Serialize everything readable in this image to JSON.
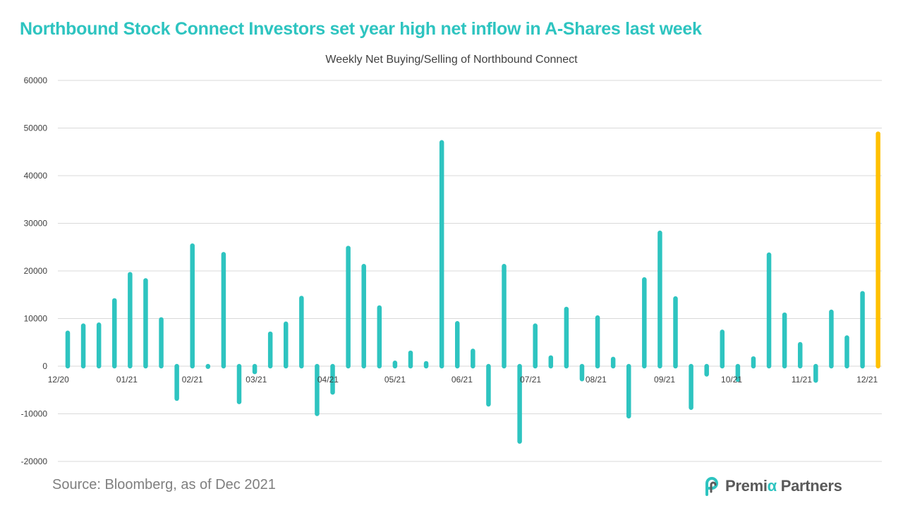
{
  "headline": "Northbound Stock Connect Investors set year high net inflow in A-Shares last week",
  "source": "Source: Bloomberg, as of Dec 2021",
  "logo": {
    "part1": "Premi",
    "accent": "α",
    "part2": " Partners"
  },
  "colors": {
    "bar": "#2ec4c0",
    "highlight": "#ffc000",
    "headline": "#2ec4c0",
    "grid": "#d9d9d9"
  },
  "chart_data": {
    "type": "bar",
    "title": "Weekly Net Buying/Selling of Northbound Connect",
    "xlabel": "",
    "ylabel": "",
    "ylim": [
      -20000,
      60000
    ],
    "yticks": [
      60000,
      50000,
      40000,
      30000,
      20000,
      10000,
      0,
      -10000,
      -20000
    ],
    "grid": true,
    "legend": "none",
    "x_tick_labels": [
      {
        "label": "12/20",
        "index": -0.6
      },
      {
        "label": "01/21",
        "index": 3.8
      },
      {
        "label": "02/21",
        "index": 8.0
      },
      {
        "label": "03/21",
        "index": 12.1
      },
      {
        "label": "04/21",
        "index": 16.7
      },
      {
        "label": "05/21",
        "index": 21.0
      },
      {
        "label": "06/21",
        "index": 25.3
      },
      {
        "label": "07/21",
        "index": 29.7
      },
      {
        "label": "08/21",
        "index": 33.9
      },
      {
        "label": "09/21",
        "index": 38.3
      },
      {
        "label": "10/21",
        "index": 42.6
      },
      {
        "label": "11/21",
        "index": 47.1
      },
      {
        "label": "12/21",
        "index": 51.3
      }
    ],
    "values": [
      7000,
      8500,
      8700,
      13800,
      19300,
      18000,
      9800,
      -6800,
      25300,
      -100,
      23500,
      -7500,
      -1200,
      6800,
      8900,
      14300,
      -10000,
      -5500,
      24800,
      21000,
      12300,
      700,
      2800,
      600,
      47000,
      9000,
      3200,
      -8000,
      21000,
      -15800,
      8500,
      1800,
      12000,
      -2700,
      10200,
      1500,
      -10500,
      18200,
      28000,
      14200,
      -8700,
      -1700,
      7200,
      -2800,
      1600,
      23400,
      10800,
      4600,
      -3000,
      11400,
      6000,
      15300,
      48800
    ],
    "highlight_index": 52
  }
}
